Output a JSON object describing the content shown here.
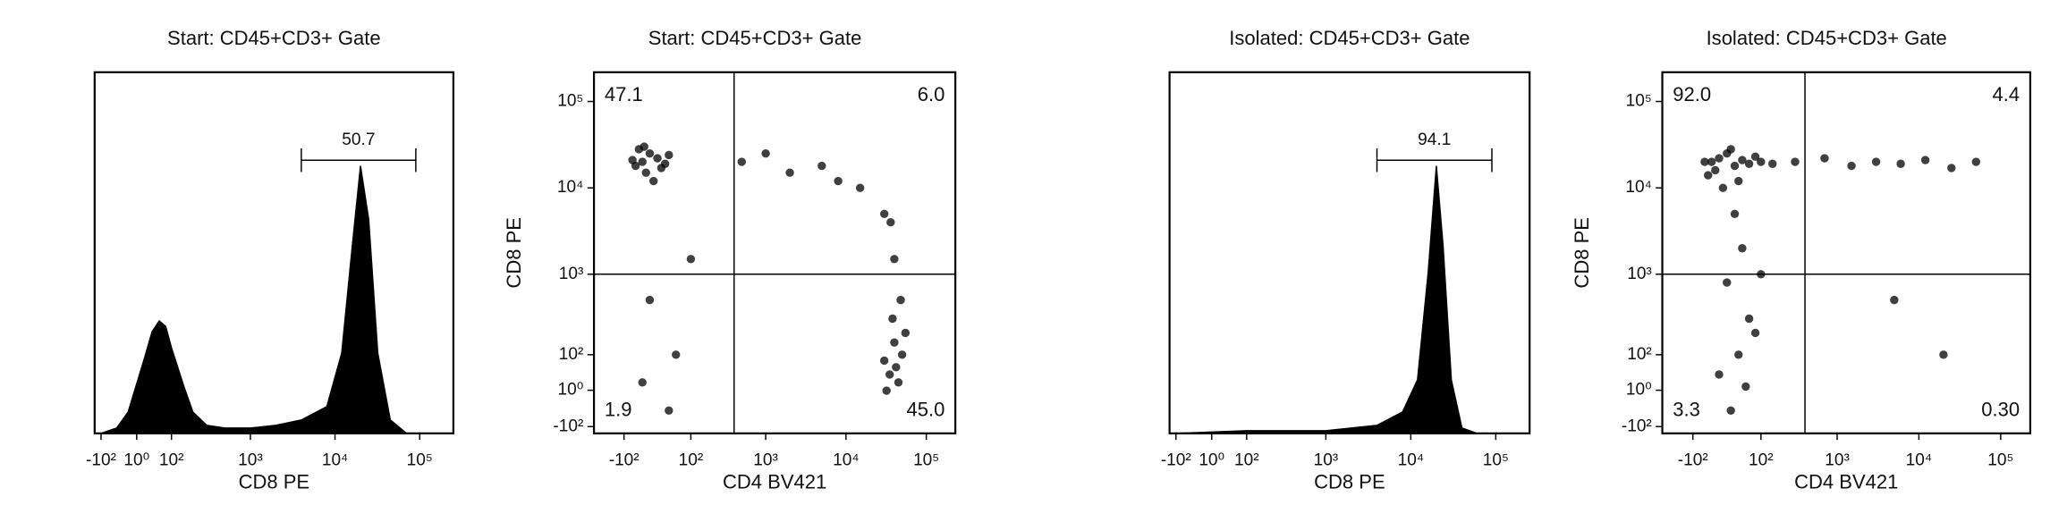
{
  "chart_data": [
    {
      "type": "area",
      "title": "Start: CD45+CD3+ Gate",
      "x_label": "CD8 PE",
      "color": "#000000",
      "x": [
        -100,
        -50,
        -20,
        0,
        20,
        40,
        60,
        80,
        100,
        150,
        200,
        300,
        500,
        1000,
        2000,
        4000,
        8000,
        12000,
        16000,
        20000,
        25000,
        32000,
        45000,
        70000
      ],
      "values": [
        0,
        2,
        8,
        18,
        28,
        38,
        42,
        40,
        32,
        18,
        8,
        3,
        2,
        2,
        3,
        5,
        10,
        30,
        70,
        100,
        80,
        30,
        5,
        0
      ],
      "xlim": [
        -125,
        250000
      ],
      "ylim": [
        0,
        135
      ],
      "xticks": [
        {
          "value": -100,
          "label": "-10²"
        },
        {
          "value": 1,
          "label": "10⁰"
        },
        {
          "value": 100,
          "label": "10²"
        },
        {
          "value": 1000,
          "label": "10³"
        },
        {
          "value": 10000,
          "label": "10⁴"
        },
        {
          "value": 100000,
          "label": "10⁵"
        }
      ],
      "gate": {
        "range": [
          4000,
          90000
        ],
        "value": 50.7
      }
    },
    {
      "type": "scatter",
      "title": "Start: CD45+CD3+ Gate",
      "x_label": "CD4 BV421",
      "y_label": "CD8 PE",
      "color": "#000000",
      "x": [
        -40,
        -20,
        -60,
        0,
        -30,
        20,
        -50,
        -10,
        30,
        -70,
        10,
        -35,
        500,
        2000,
        5000,
        15000,
        30000,
        1000,
        8000,
        -20,
        50,
        -40,
        100,
        30,
        30000,
        40000,
        35000,
        50000,
        45000,
        38000,
        42000,
        55000,
        32000,
        48000,
        40000,
        36000
      ],
      "values": [
        20000,
        25000,
        18000,
        22000,
        15000,
        19000,
        28000,
        12000,
        24000,
        21000,
        17000,
        30000,
        20000,
        15000,
        18000,
        10000,
        5000,
        25000,
        12000,
        500,
        100,
        20,
        1500,
        -50,
        80,
        150,
        40,
        100,
        20,
        300,
        60,
        200,
        0,
        500,
        1500,
        4000
      ],
      "xlim": [
        -270,
        230000
      ],
      "ylim": [
        -126,
        218000
      ],
      "xticks": [
        {
          "value": -100,
          "label": "-10²"
        },
        {
          "value": 100,
          "label": "10²"
        },
        {
          "value": 1000,
          "label": "10³"
        },
        {
          "value": 10000,
          "label": "10⁴"
        },
        {
          "value": 100000,
          "label": "10⁵"
        }
      ],
      "yticks": [
        {
          "value": -100,
          "label": "-10²"
        },
        {
          "value": 1,
          "label": "10⁰"
        },
        {
          "value": 100,
          "label": "10²"
        },
        {
          "value": 1000,
          "label": "10³"
        },
        {
          "value": 10000,
          "label": "10⁴"
        },
        {
          "value": 100000,
          "label": "10⁵"
        }
      ],
      "quadrant_gate": [
        400,
        1000
      ],
      "quadrant_values": [
        47.1,
        6.0,
        1.9,
        45.0
      ],
      "quadrant_value_labels": [
        "47.1",
        "6.0",
        "1.9",
        "45.0"
      ]
    },
    {
      "type": "area",
      "title": "Isolated: CD45+CD3+ Gate",
      "x_label": "CD8 PE",
      "color": "#000000",
      "x": [
        -100,
        0,
        100,
        1000,
        4000,
        8000,
        12000,
        16000,
        20000,
        24000,
        30000,
        40000,
        60000
      ],
      "values": [
        0,
        0.5,
        1,
        1,
        3,
        8,
        20,
        60,
        100,
        70,
        20,
        2,
        0
      ],
      "xlim": [
        -125,
        250000
      ],
      "ylim": [
        0,
        135
      ],
      "xticks": [
        {
          "value": -100,
          "label": "-10²"
        },
        {
          "value": 1,
          "label": "10⁰"
        },
        {
          "value": 100,
          "label": "10²"
        },
        {
          "value": 1000,
          "label": "10³"
        },
        {
          "value": 10000,
          "label": "10⁴"
        },
        {
          "value": 100000,
          "label": "10⁵"
        }
      ],
      "gate": {
        "range": [
          4000,
          90000
        ],
        "value": 94.1
      }
    },
    {
      "type": "scatter",
      "title": "Isolated: CD45+CD3+ Gate",
      "x_label": "CD4 BV421",
      "y_label": "CD8 PE",
      "color": "#000000",
      "x": [
        -40,
        -20,
        0,
        20,
        -60,
        40,
        60,
        -30,
        10,
        80,
        -50,
        30,
        100,
        150,
        -10,
        300,
        700,
        1500,
        3000,
        6000,
        12000,
        25000,
        50000,
        20,
        40,
        0,
        60,
        30,
        -20,
        50,
        10,
        80,
        100,
        5000,
        20000
      ],
      "values": [
        20000,
        22000,
        25000,
        18000,
        20000,
        21000,
        19000,
        16000,
        28000,
        23000,
        14000,
        12000,
        20000,
        19000,
        10000,
        20000,
        22000,
        18000,
        20000,
        19000,
        21000,
        17000,
        20000,
        5000,
        2000,
        800,
        300,
        100,
        40,
        10,
        -50,
        200,
        1000,
        500,
        100
      ],
      "xlim": [
        -270,
        230000
      ],
      "ylim": [
        -126,
        218000
      ],
      "xticks": [
        {
          "value": -100,
          "label": "-10²"
        },
        {
          "value": 100,
          "label": "10²"
        },
        {
          "value": 1000,
          "label": "10³"
        },
        {
          "value": 10000,
          "label": "10⁴"
        },
        {
          "value": 100000,
          "label": "10⁵"
        }
      ],
      "yticks": [
        {
          "value": -100,
          "label": "-10²"
        },
        {
          "value": 1,
          "label": "10⁰"
        },
        {
          "value": 100,
          "label": "10²"
        },
        {
          "value": 1000,
          "label": "10³"
        },
        {
          "value": 10000,
          "label": "10⁴"
        },
        {
          "value": 100000,
          "label": "10⁵"
        }
      ],
      "quadrant_gate": [
        400,
        1000
      ],
      "quadrant_values": [
        92.0,
        4.4,
        3.3,
        0.3
      ],
      "quadrant_value_labels": [
        "92.0",
        "4.4",
        "3.3",
        "0.30"
      ]
    }
  ]
}
